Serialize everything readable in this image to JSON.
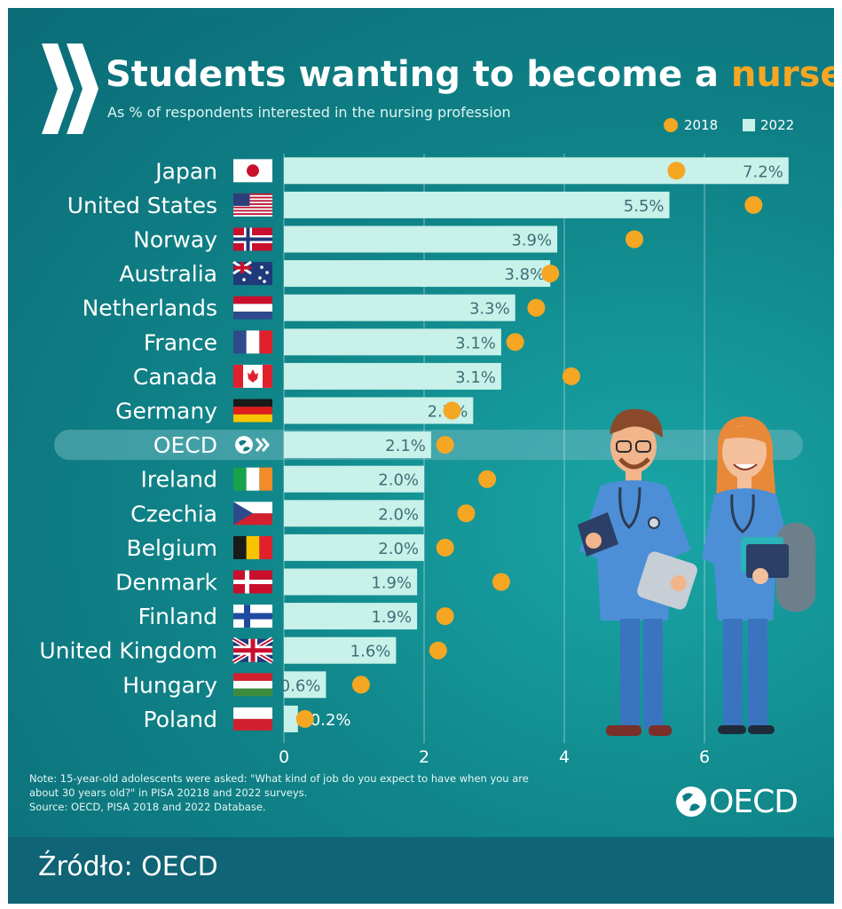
{
  "title": {
    "main": "Students wanting to become a ",
    "highlight": "nurse"
  },
  "subtitle": "As % of respondents interested in the nursing profession",
  "legend": {
    "y2018": "2018",
    "y2022": "2022"
  },
  "colors": {
    "bar_2022": "#c8f1e9",
    "dot_2018": "#f5a623",
    "oecd_highlight": "#6bb7bd"
  },
  "chart_data": {
    "type": "bar",
    "orientation": "horizontal",
    "categories": [
      "Japan",
      "United States",
      "Norway",
      "Australia",
      "Netherlands",
      "France",
      "Canada",
      "Germany",
      "OECD",
      "Ireland",
      "Czechia",
      "Belgium",
      "Denmark",
      "Finland",
      "United Kingdom",
      "Hungary",
      "Poland"
    ],
    "series": [
      {
        "name": "2022",
        "values": [
          7.2,
          5.5,
          3.9,
          3.8,
          3.3,
          3.1,
          3.1,
          2.7,
          2.1,
          2.0,
          2.0,
          2.0,
          1.9,
          1.9,
          1.6,
          0.6,
          0.2
        ],
        "labels": [
          "7.2%",
          "5.5%",
          "3.9%",
          "3.8%",
          "3.3%",
          "3.1%",
          "3.1%",
          "2.7%",
          "2.1%",
          "2.0%",
          "2.0%",
          "2.0%",
          "1.9%",
          "1.9%",
          "1.6%",
          "0.6%",
          "0.2%"
        ]
      },
      {
        "name": "2018",
        "values": [
          5.6,
          6.7,
          5.0,
          3.8,
          3.6,
          3.3,
          4.1,
          2.4,
          2.3,
          2.9,
          2.6,
          2.3,
          3.1,
          2.3,
          2.2,
          1.1,
          0.3
        ]
      }
    ],
    "xlim": [
      0,
      7.2
    ],
    "xticks": [
      "0",
      "2",
      "4",
      "6"
    ],
    "highlight_category": "OECD",
    "legend_position": "top-right",
    "grid": true
  },
  "flags": [
    "japan-flag",
    "usa-flag",
    "norway-flag",
    "australia-flag",
    "netherlands-flag",
    "france-flag",
    "canada-flag",
    "germany-flag",
    "oecd-logo-icon",
    "ireland-flag",
    "czechia-flag",
    "belgium-flag",
    "denmark-flag",
    "finland-flag",
    "uk-flag",
    "hungary-flag",
    "poland-flag"
  ],
  "notes": {
    "line1": "Note: 15-year-old adolescents were asked: \"What kind of job do you expect to have when you are",
    "line2": "about 30 years old?\" in PISA 20218 and 2022 surveys.",
    "line3": "Source: OECD, PISA 2018 and 2022 Database."
  },
  "brand": "OECD",
  "footer": "Źródło: OECD"
}
